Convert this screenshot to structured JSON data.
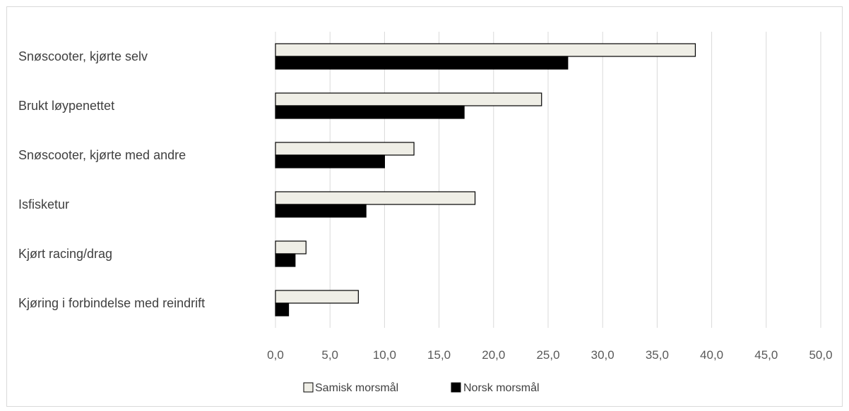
{
  "chart_data": {
    "type": "bar",
    "orientation": "horizontal",
    "categories": [
      "Snøscooter, kjørte selv",
      "Brukt løypenettet",
      "Snøscooter, kjørte med andre",
      "Isfisketur",
      "Kjørt racing/drag",
      "Kjøring i forbindelse med reindrift"
    ],
    "series": [
      {
        "name": "Samisk morsmål",
        "values": [
          38.5,
          24.4,
          12.7,
          18.3,
          2.8,
          7.6
        ],
        "color": "#efeee6"
      },
      {
        "name": "Norsk morsmål",
        "values": [
          26.8,
          17.3,
          10.0,
          8.3,
          1.8,
          1.2
        ],
        "color": "#000000"
      }
    ],
    "xlim": [
      0,
      50
    ],
    "xticks": [
      "0,0",
      "5,0",
      "10,0",
      "15,0",
      "20,0",
      "25,0",
      "30,0",
      "35,0",
      "40,0",
      "45,0",
      "50,0"
    ],
    "grid": true,
    "legend_position": "bottom"
  }
}
